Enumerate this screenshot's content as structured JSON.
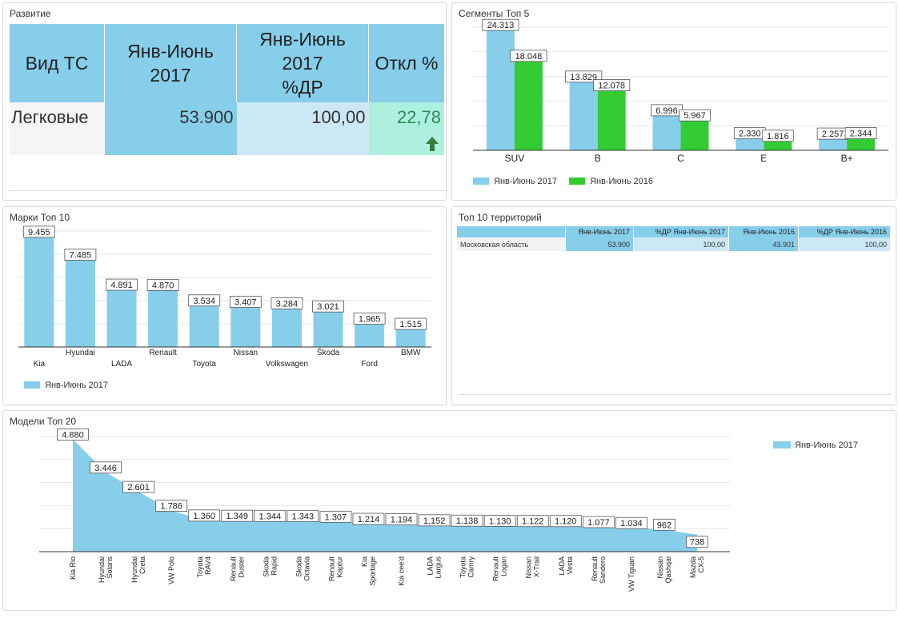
{
  "colors": {
    "primary": "#87ceeb",
    "secondary": "#33cc33",
    "light": "#cde8f5",
    "positive_bg": "#aef0e0",
    "positive_text": "#2e8b57",
    "arrow": "#3a7a3a"
  },
  "development": {
    "title": "Развитие",
    "headers": {
      "type": "Вид ТС",
      "period": "Янв-Июнь 2017",
      "period_share_l1": "Янв-Июнь",
      "period_share_l2": "2017",
      "period_share_l3": "%ДР",
      "deviation": "Откл %"
    },
    "row": {
      "type": "Легковые",
      "value": "53.900",
      "share": "100,00",
      "deviation": "22,78",
      "trend_icon": "arrow-up-icon"
    }
  },
  "segments": {
    "title": "Сегменты Топ 5",
    "legend": [
      "Янв-Июнь 2017",
      "Янв-Июнь 2016"
    ]
  },
  "brands": {
    "title": "Марки Топ 10",
    "legend": [
      "Янв-Июнь 2017"
    ]
  },
  "territories": {
    "title": "Топ 10 территорий",
    "headers": [
      "",
      "Янв-Июнь 2017",
      "%ДР Янв-Июнь 2017",
      "Янв-Июнь 2016",
      "%ДР Янв-Июнь 2016"
    ],
    "rows": [
      [
        "Московская область",
        "53.900",
        "100,00",
        "43.901",
        "100,00"
      ]
    ]
  },
  "models": {
    "title": "Модели Топ 20",
    "legend": [
      "Янв-Июнь 2017"
    ]
  },
  "chart_data": [
    {
      "type": "bar",
      "title": "Сегменты Топ 5",
      "categories": [
        "SUV",
        "B",
        "C",
        "E",
        "B+"
      ],
      "series": [
        {
          "name": "Янв-Июнь 2017",
          "values": [
            24313,
            13829,
            6996,
            2330,
            2257
          ],
          "labels": [
            "24.313",
            "13.829",
            "6.996",
            "2.330",
            "2.257"
          ]
        },
        {
          "name": "Янв-Июнь 2016",
          "values": [
            18048,
            12078,
            5967,
            1816,
            2344
          ],
          "labels": [
            "18.048",
            "12.078",
            "5.967",
            "1.816",
            "2.344"
          ]
        }
      ],
      "ylim": [
        0,
        25000
      ],
      "legend": "bottom-left"
    },
    {
      "type": "bar",
      "title": "Марки Топ 10",
      "categories": [
        "Kia",
        "Hyundai",
        "LADA",
        "Renault",
        "Toyota",
        "Nissan",
        "Volkswagen",
        "Škoda",
        "Ford",
        "BMW"
      ],
      "series": [
        {
          "name": "Янв-Июнь 2017",
          "values": [
            9455,
            7485,
            4891,
            4870,
            3534,
            3407,
            3284,
            3021,
            1965,
            1515
          ],
          "labels": [
            "9.455",
            "7.485",
            "4.891",
            "4.870",
            "3.534",
            "3.407",
            "3.284",
            "3.021",
            "1.965",
            "1.515"
          ]
        }
      ],
      "ylim": [
        0,
        10000
      ],
      "legend": "bottom-left"
    },
    {
      "type": "area",
      "title": "Модели Топ 20",
      "categories": [
        "Kia Rio",
        "Hyundai Solaris",
        "Hyundai Creta",
        "VW Polo",
        "Toyota RAV4",
        "Renault Duster",
        "Skoda Rapid",
        "Skoda Octavia",
        "Renault Kaptur",
        "Kia Sportage",
        "Kia cee'd",
        "LADA Largus",
        "Toyota Camry",
        "Renault Logan",
        "Nissan X-Trail",
        "LADA Vesta",
        "Renault Sandero",
        "VW Tiguan",
        "Nissan Qashqai",
        "Mazda CX-5"
      ],
      "tick_lines": [
        [
          "Kia Rio"
        ],
        [
          "Hyundai",
          "Solaris"
        ],
        [
          "Hyundai",
          "Creta"
        ],
        [
          "VW Polo"
        ],
        [
          "Toyota",
          "RAV4"
        ],
        [
          "Renault",
          "Duster"
        ],
        [
          "Skoda",
          "Rapid"
        ],
        [
          "Skoda",
          "Octavia"
        ],
        [
          "Renault",
          "Kaptur"
        ],
        [
          "Kia",
          "Sportage"
        ],
        [
          "Kia cee'd"
        ],
        [
          "LADA",
          "Largus"
        ],
        [
          "Toyota",
          "Camry"
        ],
        [
          "Renault",
          "Logan"
        ],
        [
          "Nissan",
          "X-Trail"
        ],
        [
          "LADA",
          "Vesta"
        ],
        [
          "Renault",
          "Sandero"
        ],
        [
          "VW Tiguan"
        ],
        [
          "Nissan",
          "Qashqai"
        ],
        [
          "Mazda",
          "CX-5"
        ]
      ],
      "series": [
        {
          "name": "Янв-Июнь 2017",
          "values": [
            4880,
            3446,
            2601,
            1786,
            1360,
            1349,
            1344,
            1343,
            1307,
            1214,
            1194,
            1152,
            1138,
            1130,
            1122,
            1120,
            1077,
            1034,
            962,
            738
          ],
          "labels": [
            "4.880",
            "3.446",
            "2.601",
            "1.786",
            "1.360",
            "1.349",
            "1.344",
            "1.343",
            "1.307",
            "1.214",
            "1.194",
            "1.152",
            "1.138",
            "1.130",
            "1.122",
            "1.120",
            "1.077",
            "1.034",
            "962",
            "738"
          ]
        }
      ],
      "ylim": [
        0,
        5000
      ],
      "legend": "top-right"
    }
  ]
}
